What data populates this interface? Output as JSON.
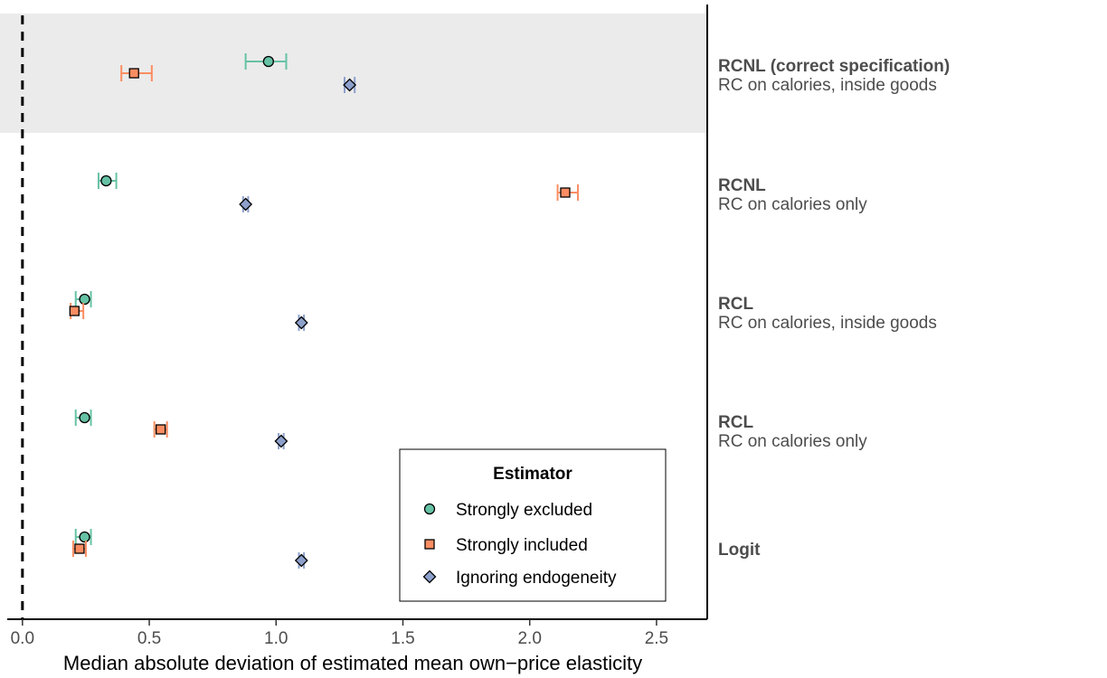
{
  "chart_data": {
    "type": "scatter",
    "xlabel": "Median absolute deviation of estimated mean own−price elasticity",
    "xlim": [
      -0.06,
      2.7
    ],
    "x_ticks": [
      0.0,
      0.5,
      1.0,
      1.5,
      2.0,
      2.5
    ],
    "x_tick_labels": [
      "0.0",
      "0.5",
      "1.0",
      "1.5",
      "2.0",
      "2.5"
    ],
    "reference_line": {
      "x": 0.0,
      "style": "dashed"
    },
    "highlighted_row": 0,
    "legend": {
      "title": "Estimator",
      "placement": "bottom-right",
      "entries": [
        "Strongly excluded",
        "Strongly included",
        "Ignoring endogeneity"
      ]
    },
    "series": [
      {
        "name": "Strongly excluded",
        "color": "#66c2a5",
        "marker": "circle"
      },
      {
        "name": "Strongly included",
        "color": "#fc8d62",
        "marker": "square"
      },
      {
        "name": "Ignoring endogeneity",
        "color": "#8da0cb",
        "marker": "diamond"
      }
    ],
    "rows": [
      {
        "title": "RCNL (correct specification)",
        "subtitle": "RC on calories, inside goods",
        "points": [
          {
            "series": 0,
            "x": 0.97,
            "lo": 0.88,
            "hi": 1.04
          },
          {
            "series": 1,
            "x": 0.44,
            "lo": 0.39,
            "hi": 0.51
          },
          {
            "series": 2,
            "x": 1.29,
            "lo": 1.27,
            "hi": 1.31
          }
        ]
      },
      {
        "title": "RCNL",
        "subtitle": "RC on calories only",
        "points": [
          {
            "series": 0,
            "x": 0.33,
            "lo": 0.3,
            "hi": 0.37
          },
          {
            "series": 1,
            "x": 2.14,
            "lo": 2.11,
            "hi": 2.19
          },
          {
            "series": 2,
            "x": 0.88,
            "lo": 0.87,
            "hi": 0.89
          }
        ]
      },
      {
        "title": "RCL",
        "subtitle": "RC on calories, inside goods",
        "points": [
          {
            "series": 0,
            "x": 0.245,
            "lo": 0.21,
            "hi": 0.27
          },
          {
            "series": 1,
            "x": 0.205,
            "lo": 0.19,
            "hi": 0.24
          },
          {
            "series": 2,
            "x": 1.1,
            "lo": 1.09,
            "hi": 1.11
          }
        ]
      },
      {
        "title": "RCL",
        "subtitle": "RC on calories only",
        "points": [
          {
            "series": 0,
            "x": 0.245,
            "lo": 0.21,
            "hi": 0.27
          },
          {
            "series": 1,
            "x": 0.545,
            "lo": 0.52,
            "hi": 0.57
          },
          {
            "series": 2,
            "x": 1.02,
            "lo": 1.01,
            "hi": 1.03
          }
        ]
      },
      {
        "title": "Logit",
        "subtitle": "",
        "points": [
          {
            "series": 0,
            "x": 0.245,
            "lo": 0.21,
            "hi": 0.27
          },
          {
            "series": 1,
            "x": 0.225,
            "lo": 0.2,
            "hi": 0.25
          },
          {
            "series": 2,
            "x": 1.1,
            "lo": 1.09,
            "hi": 1.11
          }
        ]
      }
    ]
  }
}
